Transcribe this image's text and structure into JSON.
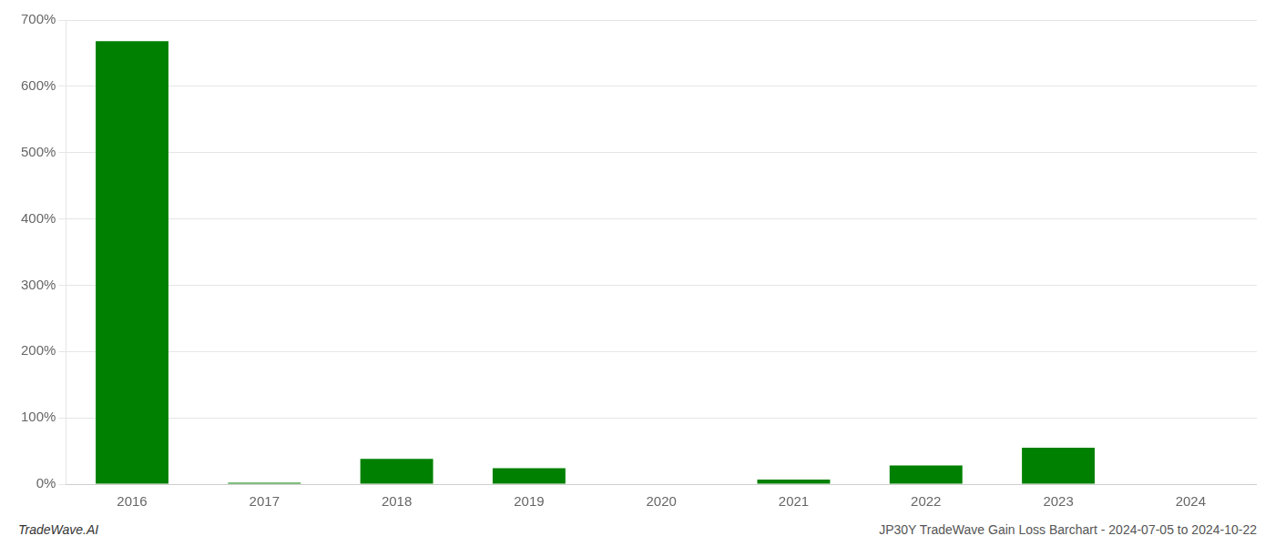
{
  "chart_data": {
    "type": "bar",
    "categories": [
      "2016",
      "2017",
      "2018",
      "2019",
      "2020",
      "2021",
      "2022",
      "2023",
      "2024"
    ],
    "values": [
      6.68,
      0.02,
      0.38,
      0.24,
      0.0,
      0.07,
      0.28,
      0.55,
      0.0
    ],
    "color": "#008000",
    "ylim": [
      0,
      7.0
    ],
    "yticks": [
      {
        "value": 0.0,
        "label": "0%"
      },
      {
        "value": 1.0,
        "label": "100%"
      },
      {
        "value": 2.0,
        "label": "200%"
      },
      {
        "value": 3.0,
        "label": "300%"
      },
      {
        "value": 4.0,
        "label": "400%"
      },
      {
        "value": 5.0,
        "label": "500%"
      },
      {
        "value": 6.0,
        "label": "600%"
      },
      {
        "value": 7.0,
        "label": "700%"
      }
    ],
    "grid": true,
    "annotations": [
      "TradeWave.AI",
      "JP30Y TradeWave Gain Loss Barchart - 2024-07-05 to 2024-10-22"
    ]
  }
}
